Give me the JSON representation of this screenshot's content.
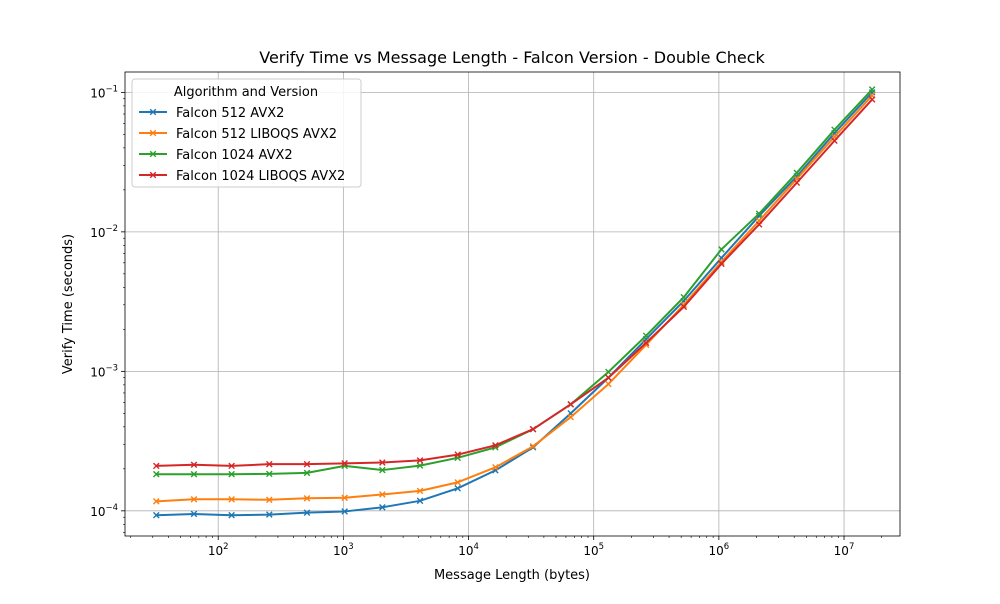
{
  "chart_data": {
    "type": "line",
    "title": "Verify Time vs Message Length - Falcon Version - Double Check",
    "xlabel": "Message Length (bytes)",
    "ylabel": "Verify Time (seconds)",
    "xscale": "log",
    "yscale": "log",
    "xlim": [
      18,
      28000000
    ],
    "ylim": [
      6.6e-05,
      0.14
    ],
    "x_ticks": [
      100,
      1000,
      10000,
      100000,
      1000000,
      10000000
    ],
    "x_tick_labels": [
      {
        "base": "10",
        "exp": "2"
      },
      {
        "base": "10",
        "exp": "3"
      },
      {
        "base": "10",
        "exp": "4"
      },
      {
        "base": "10",
        "exp": "5"
      },
      {
        "base": "10",
        "exp": "6"
      },
      {
        "base": "10",
        "exp": "7"
      }
    ],
    "y_ticks": [
      0.0001,
      0.001,
      0.01,
      0.1
    ],
    "y_tick_labels": [
      {
        "base": "10",
        "exp": "−4"
      },
      {
        "base": "10",
        "exp": "−3"
      },
      {
        "base": "10",
        "exp": "−2"
      },
      {
        "base": "10",
        "exp": "−1"
      }
    ],
    "grid": true,
    "legend_title": "Algorithm and Version",
    "legend_position": "upper-left",
    "x": [
      32,
      64,
      128,
      256,
      512,
      1024,
      2048,
      4096,
      8192,
      16384,
      32768,
      65536,
      131072,
      262144,
      524288,
      1048576,
      2097152,
      4194304,
      8388608,
      16777216
    ],
    "series": [
      {
        "name": "Falcon 512 AVX2",
        "color": "#1f77b4",
        "values": [
          9.3e-05,
          9.5e-05,
          9.3e-05,
          9.4e-05,
          9.7e-05,
          9.9e-05,
          0.000106,
          0.000118,
          0.000145,
          0.000195,
          0.000285,
          0.0005,
          0.0009,
          0.0017,
          0.0032,
          0.0065,
          0.013,
          0.025,
          0.051,
          0.1
        ]
      },
      {
        "name": "Falcon 512 LIBOQS AVX2",
        "color": "#ff7f0e",
        "values": [
          0.000117,
          0.000121,
          0.000121,
          0.00012,
          0.000123,
          0.000124,
          0.000131,
          0.000139,
          0.00016,
          0.000205,
          0.00029,
          0.00047,
          0.00081,
          0.00155,
          0.003,
          0.0061,
          0.012,
          0.024,
          0.048,
          0.095
        ]
      },
      {
        "name": "Falcon 1024 AVX2",
        "color": "#2ca02c",
        "values": [
          0.000183,
          0.000183,
          0.000183,
          0.000184,
          0.000187,
          0.00021,
          0.000196,
          0.000211,
          0.00024,
          0.000285,
          0.000385,
          0.00058,
          0.00099,
          0.0018,
          0.0034,
          0.0075,
          0.0135,
          0.0265,
          0.054,
          0.105
        ]
      },
      {
        "name": "Falcon 1024 LIBOQS AVX2",
        "color": "#d62728",
        "values": [
          0.00021,
          0.000214,
          0.00021,
          0.000216,
          0.000216,
          0.000219,
          0.000222,
          0.00023,
          0.000253,
          0.000295,
          0.000385,
          0.00058,
          0.0009,
          0.0016,
          0.0029,
          0.0059,
          0.0113,
          0.0225,
          0.045,
          0.089
        ]
      }
    ]
  }
}
